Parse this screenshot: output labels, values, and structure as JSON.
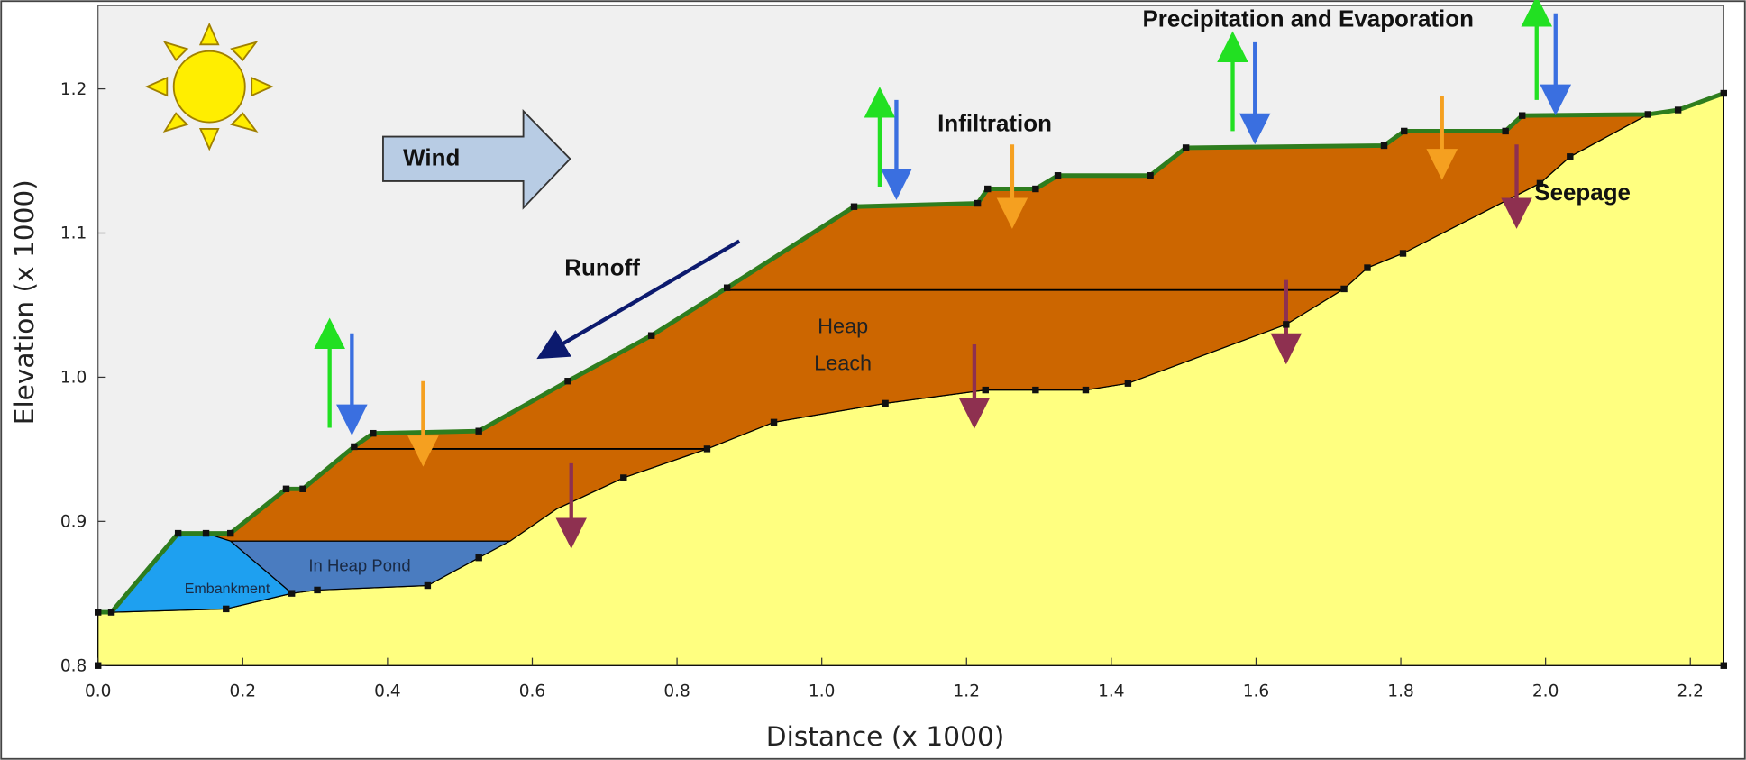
{
  "axes": {
    "x_title": "Distance (x  1000)",
    "y_title": "Elevation (x  1000)",
    "x_ticks": [
      "0.0",
      "0.2",
      "0.4",
      "0.6",
      "0.8",
      "1.0",
      "1.2",
      "1.4",
      "1.6",
      "1.8",
      "2.0",
      "2.2"
    ],
    "y_ticks": [
      "0.8",
      "0.9",
      "1.0",
      "1.1",
      "1.2"
    ]
  },
  "labels": {
    "precipitation": "Precipitation and Evaporation",
    "infiltration": "Infiltration",
    "wind": "Wind",
    "runoff": "Runoff",
    "seepage": "Seepage"
  },
  "regions": {
    "heap_leach": [
      "Heap",
      "Leach"
    ],
    "pond": "In Heap Pond",
    "embankment": "Embankment"
  }
}
